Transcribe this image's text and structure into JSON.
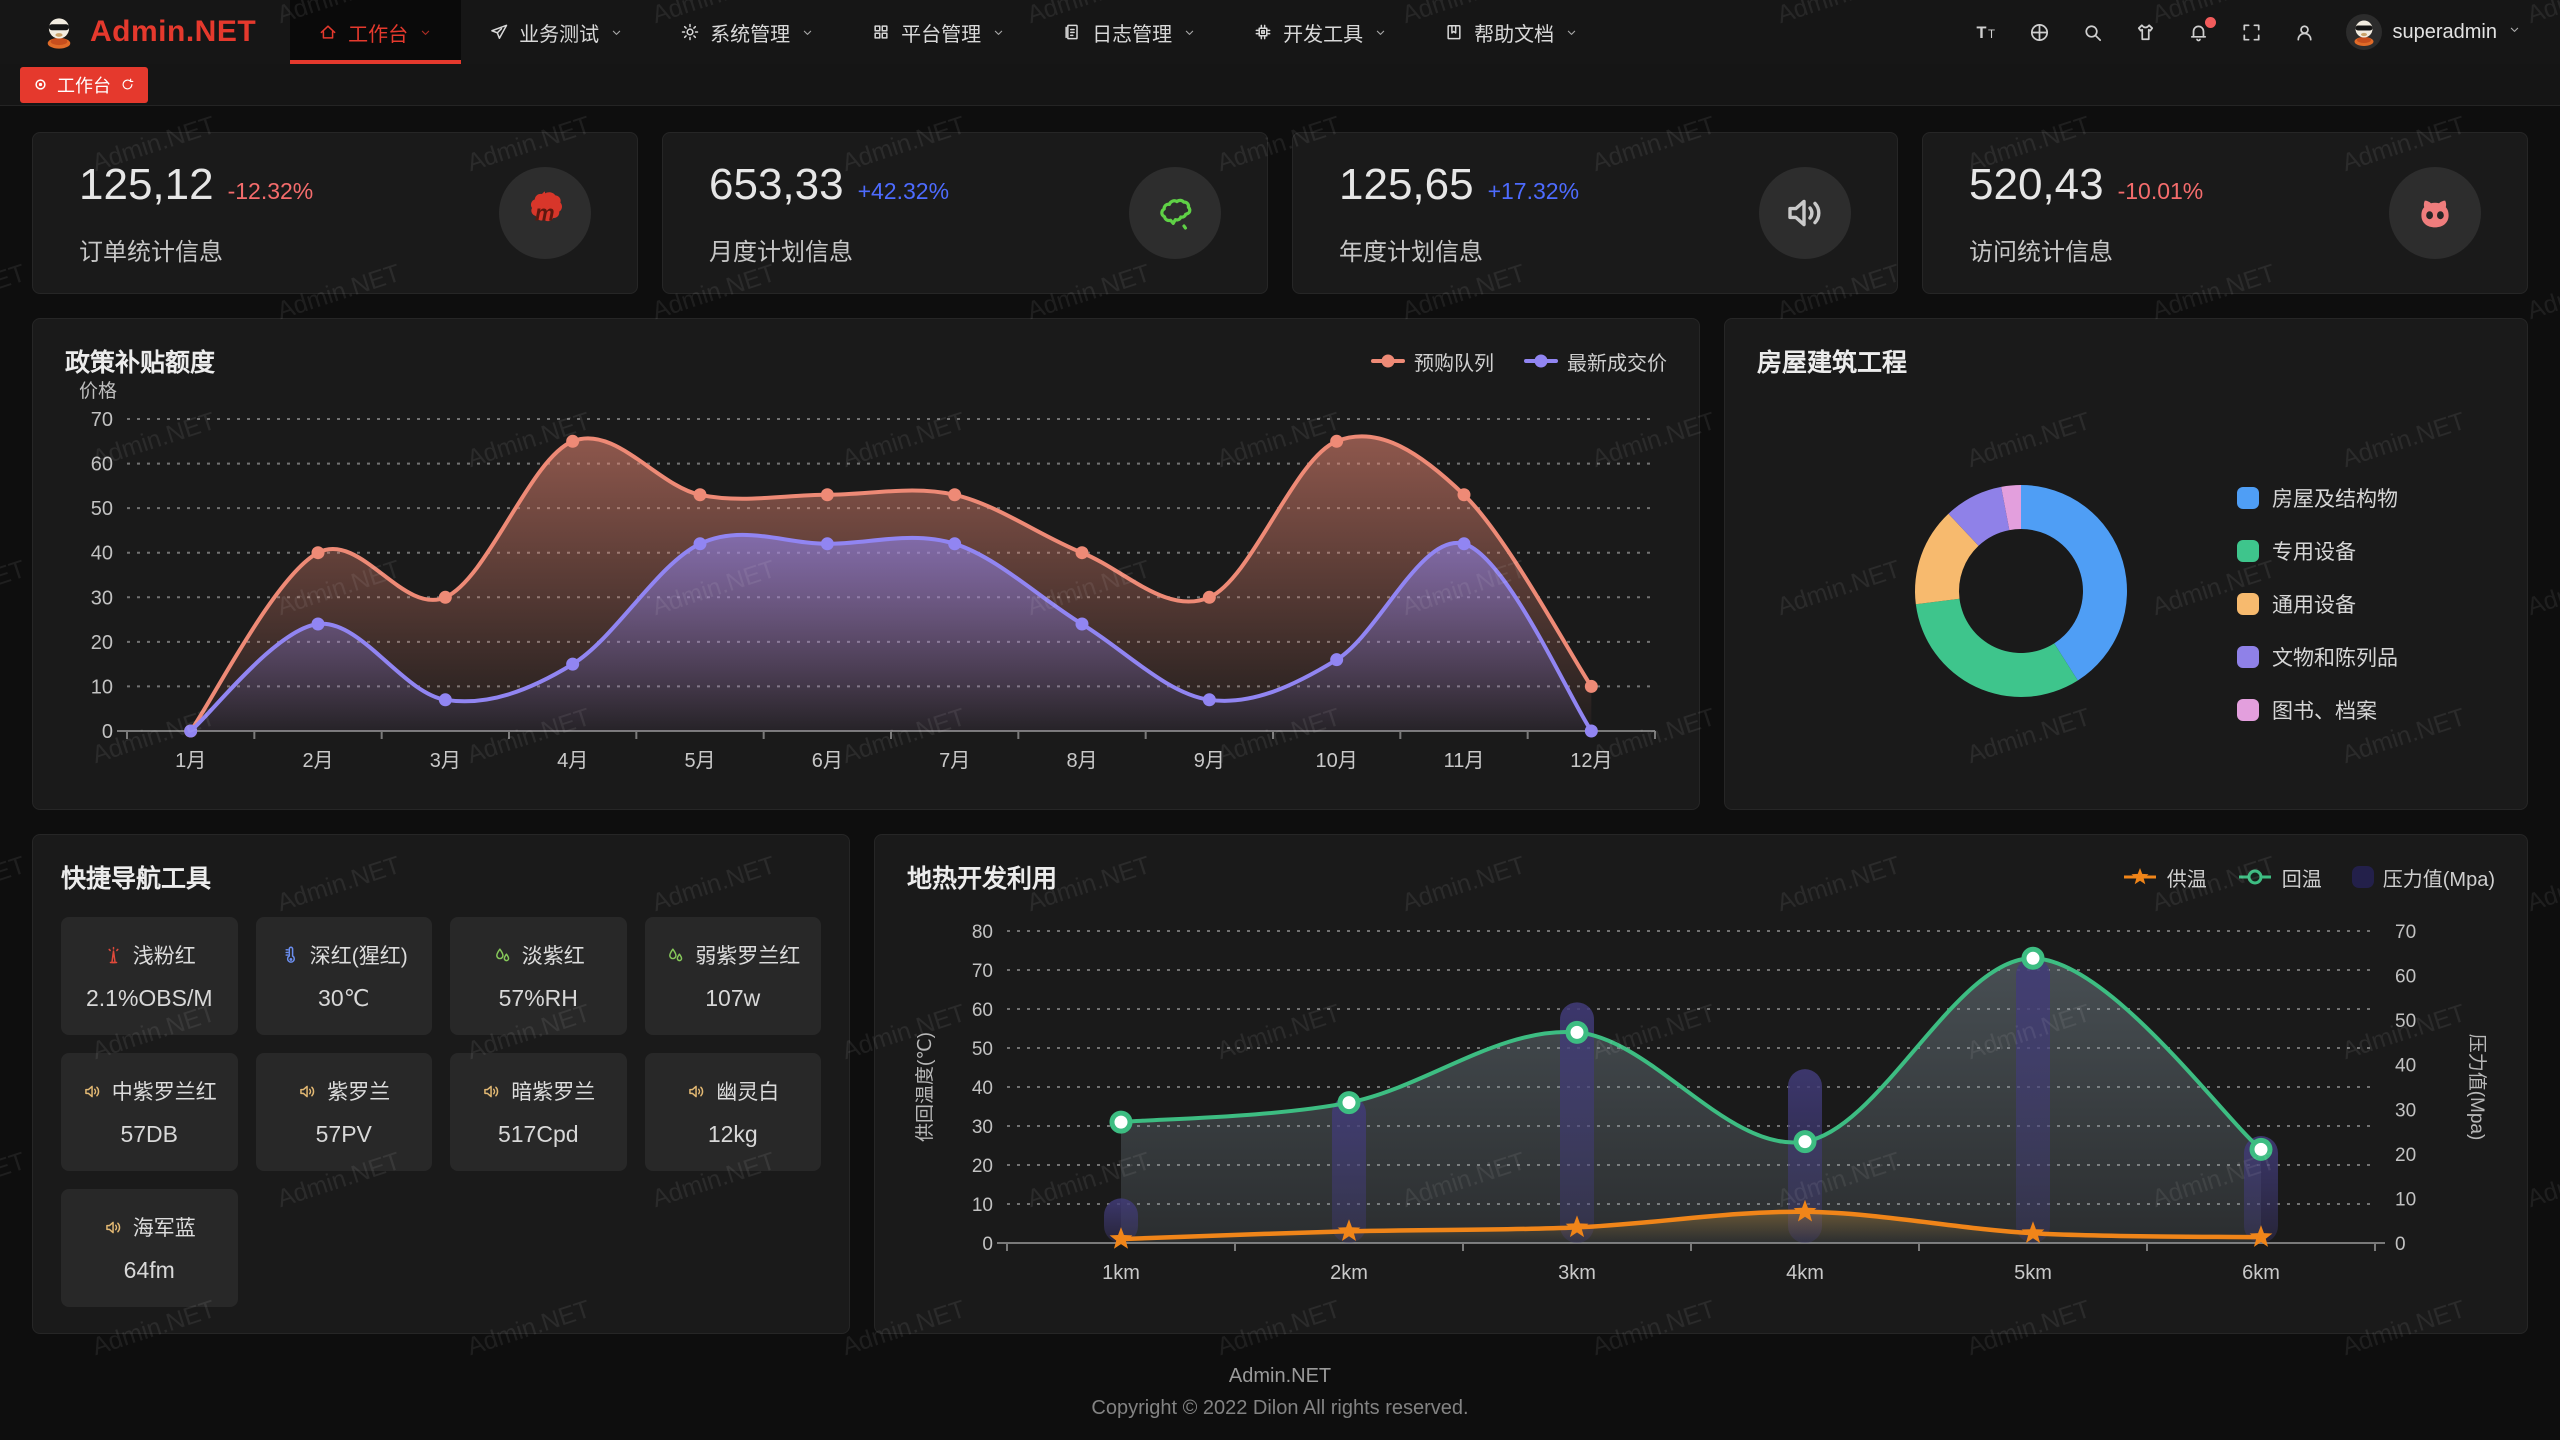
{
  "app": {
    "name": "Admin.NET",
    "watermark": "Admin.NET"
  },
  "colors": {
    "accent": "#e5392d",
    "delta_up": "#4d6bfe",
    "delta_down": "#f56c6c"
  },
  "navbar": {
    "logo_text": "Admin.NET",
    "menu": [
      {
        "label": "工作台",
        "icon": "home-icon",
        "active": true
      },
      {
        "label": "业务测试",
        "icon": "paper-plane-icon",
        "active": false
      },
      {
        "label": "系统管理",
        "icon": "gear-icon",
        "active": false
      },
      {
        "label": "平台管理",
        "icon": "grid-icon",
        "active": false
      },
      {
        "label": "日志管理",
        "icon": "log-document-icon",
        "active": false
      },
      {
        "label": "开发工具",
        "icon": "chip-icon",
        "active": false
      },
      {
        "label": "帮助文档",
        "icon": "book-icon",
        "active": false
      }
    ],
    "tools": [
      {
        "icon": "font-size-icon"
      },
      {
        "icon": "language-icon"
      },
      {
        "icon": "search-icon"
      },
      {
        "icon": "theme-shirt-icon"
      },
      {
        "icon": "notification-bell-icon",
        "badge": true
      },
      {
        "icon": "fullscreen-icon"
      },
      {
        "icon": "profile-icon"
      }
    ],
    "user": {
      "name": "superadmin"
    }
  },
  "tabbar": {
    "tabs": [
      {
        "label": "工作台",
        "active": true
      }
    ]
  },
  "stats": [
    {
      "value": "125,12",
      "delta": "-12.32%",
      "direction": "down",
      "label": "订单统计信息",
      "icon": "meetup-icon"
    },
    {
      "value": "653,33",
      "delta": "+42.32%",
      "direction": "up",
      "label": "月度计划信息",
      "icon": "china-map-icon"
    },
    {
      "value": "125,65",
      "delta": "+17.32%",
      "direction": "up",
      "label": "年度计划信息",
      "icon": "speaker-icon"
    },
    {
      "value": "520,43",
      "delta": "-10.01%",
      "direction": "down",
      "label": "访问统计信息",
      "icon": "octocat-icon"
    }
  ],
  "quick_nav": {
    "title": "快捷导航工具",
    "items": [
      {
        "label": "浅粉红",
        "value": "2.1%OBS/M",
        "icon": "beacon-tower-icon",
        "icon_color": "#e0493a"
      },
      {
        "label": "深红(猩红)",
        "value": "30℃",
        "icon": "thermometer-icon",
        "icon_color": "#6c8ff0"
      },
      {
        "label": "淡紫红",
        "value": "57%RH",
        "icon": "water-drops-icon",
        "icon_color": "#86c85a"
      },
      {
        "label": "弱紫罗兰红",
        "value": "107w",
        "icon": "water-drops-icon",
        "icon_color": "#86c85a"
      },
      {
        "label": "中紫罗兰红",
        "value": "57DB",
        "icon": "speaker-icon",
        "icon_color": "#e2b873"
      },
      {
        "label": "紫罗兰",
        "value": "57PV",
        "icon": "speaker-icon",
        "icon_color": "#e2b873"
      },
      {
        "label": "暗紫罗兰",
        "value": "517Cpd",
        "icon": "speaker-icon",
        "icon_color": "#e2b873"
      },
      {
        "label": "幽灵白",
        "value": "12kg",
        "icon": "speaker-icon",
        "icon_color": "#e2b873"
      },
      {
        "label": "海军蓝",
        "value": "64fm",
        "icon": "speaker-icon",
        "icon_color": "#e2b873"
      }
    ]
  },
  "footer": {
    "line1": "Admin.NET",
    "line2": "Copyright © 2022 Dilon All rights reserved."
  },
  "chart_data": [
    {
      "id": "subsidy",
      "type": "area",
      "title": "政策补贴额度",
      "ylabel": "价格",
      "ylim": [
        0,
        70
      ],
      "ytick_step": 10,
      "grid": "dashed",
      "legend_position": "top-right",
      "categories": [
        "1月",
        "2月",
        "3月",
        "4月",
        "5月",
        "6月",
        "7月",
        "8月",
        "9月",
        "10月",
        "11月",
        "12月"
      ],
      "series": [
        {
          "name": "预购队列",
          "color": "#ee8a76",
          "values": [
            0,
            40,
            30,
            65,
            53,
            53,
            53,
            40,
            30,
            65,
            53,
            10
          ]
        },
        {
          "name": "最新成交价",
          "color": "#9185f2",
          "values": [
            0,
            24,
            7,
            15,
            42,
            42,
            42,
            24,
            7,
            16,
            42,
            0
          ]
        }
      ]
    },
    {
      "id": "building",
      "type": "pie",
      "title": "房屋建筑工程",
      "donut": true,
      "legend_position": "right",
      "slices": [
        {
          "label": "房屋及结构物",
          "value": 41,
          "color": "#4f9ef5"
        },
        {
          "label": "专用设备",
          "value": 32,
          "color": "#3ec58c"
        },
        {
          "label": "通用设备",
          "value": 15,
          "color": "#f7ba6e"
        },
        {
          "label": "文物和陈列品",
          "value": 9,
          "color": "#8f81e8"
        },
        {
          "label": "图书、档案",
          "value": 3,
          "color": "#e39fdd"
        }
      ]
    },
    {
      "id": "geothermal",
      "type": "combo",
      "title": "地热开发利用",
      "grid": "dashed",
      "categories": [
        "1km",
        "2km",
        "3km",
        "4km",
        "5km",
        "6km"
      ],
      "left_axis": {
        "label": "供回温度(℃)",
        "min": 0,
        "max": 80,
        "step": 10
      },
      "right_axis": {
        "label": "压力值(Mpa)",
        "min": 0,
        "max": 70,
        "step": 10
      },
      "series": [
        {
          "name": "供温",
          "type": "line",
          "marker": "star",
          "axis": "left",
          "color": "#f08519",
          "values": [
            1,
            3,
            4,
            8,
            2.5,
            1.5
          ]
        },
        {
          "name": "回温",
          "type": "line",
          "marker": "dot",
          "axis": "left",
          "color": "#3dbd82",
          "area": true,
          "values": [
            31,
            36,
            54,
            26,
            73,
            24
          ]
        },
        {
          "name": "压力值(Mpa)",
          "type": "bar",
          "axis": "right",
          "color": "#2e2a5c",
          "values": [
            10,
            33,
            54,
            39,
            64,
            24
          ]
        }
      ]
    }
  ]
}
